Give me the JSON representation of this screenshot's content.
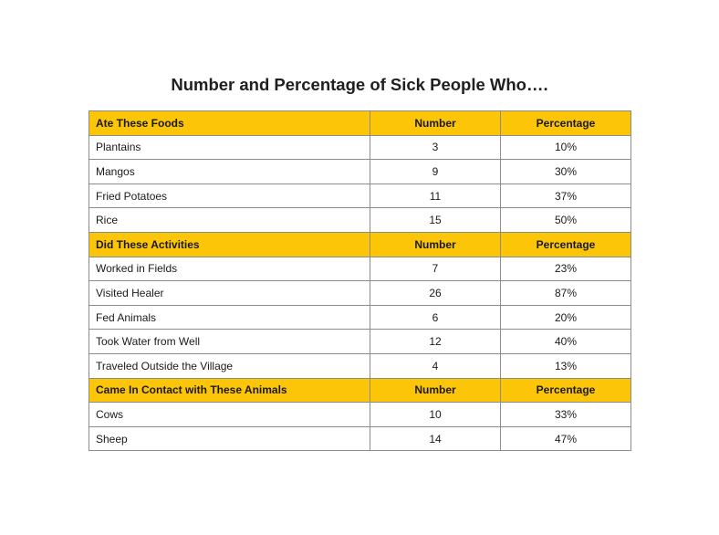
{
  "title": "Number and Percentage of Sick People Who….",
  "sections": [
    {
      "header": {
        "category": "Ate These Foods",
        "number": "Number",
        "percentage": "Percentage"
      },
      "rows": [
        {
          "label": "Plantains",
          "number": "3",
          "percentage": "10%"
        },
        {
          "label": "Mangos",
          "number": "9",
          "percentage": "30%"
        },
        {
          "label": "Fried Potatoes",
          "number": "11",
          "percentage": "37%"
        },
        {
          "label": "Rice",
          "number": "15",
          "percentage": "50%"
        }
      ]
    },
    {
      "header": {
        "category": "Did These Activities",
        "number": "Number",
        "percentage": "Percentage"
      },
      "rows": [
        {
          "label": "Worked in Fields",
          "number": "7",
          "percentage": "23%"
        },
        {
          "label": "Visited Healer",
          "number": "26",
          "percentage": "87%"
        },
        {
          "label": "Fed Animals",
          "number": "6",
          "percentage": "20%"
        },
        {
          "label": "Took Water from Well",
          "number": "12",
          "percentage": "40%"
        },
        {
          "label": "Traveled Outside the Village",
          "number": "4",
          "percentage": "13%"
        }
      ]
    },
    {
      "header": {
        "category": "Came In Contact with These Animals",
        "number": "Number",
        "percentage": "Percentage"
      },
      "rows": [
        {
          "label": "Cows",
          "number": "10",
          "percentage": "33%"
        },
        {
          "label": "Sheep",
          "number": "14",
          "percentage": "47%"
        }
      ]
    }
  ],
  "colors": {
    "header_fill": "#fcc508",
    "border": "#8c8c8c"
  }
}
